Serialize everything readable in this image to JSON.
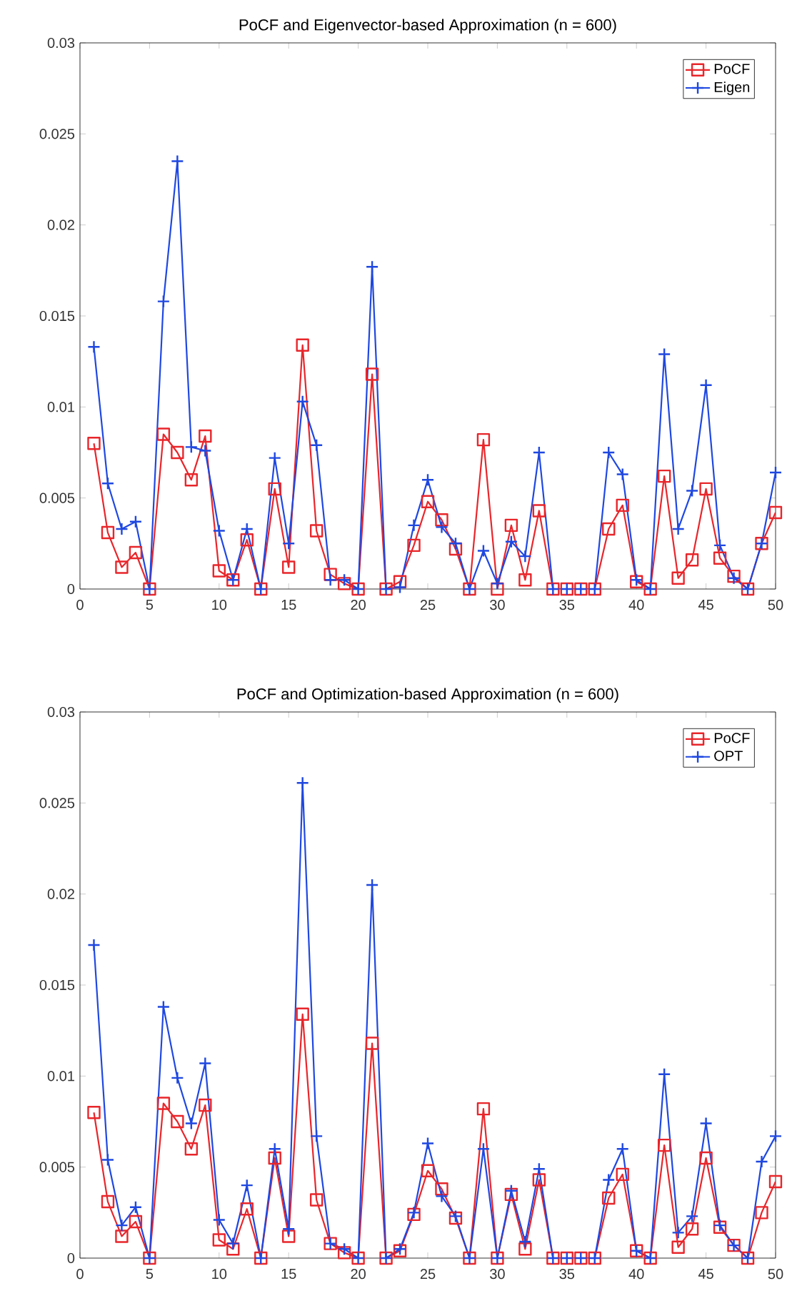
{
  "chart_data": [
    {
      "type": "line",
      "title": "PoCF and Eigenvector-based Approximation (n = 600)",
      "x": [
        1,
        2,
        3,
        4,
        5,
        6,
        7,
        8,
        9,
        10,
        11,
        12,
        13,
        14,
        15,
        16,
        17,
        18,
        19,
        20,
        21,
        22,
        23,
        24,
        25,
        26,
        27,
        28,
        29,
        30,
        31,
        32,
        33,
        34,
        35,
        36,
        37,
        38,
        39,
        40,
        41,
        42,
        43,
        44,
        45,
        46,
        47,
        48,
        49,
        50
      ],
      "series": [
        {
          "name": "PoCF",
          "color": "#e8262b",
          "marker": "square",
          "values": [
            0.008,
            0.0031,
            0.0012,
            0.002,
            0,
            0.0085,
            0.0075,
            0.006,
            0.0084,
            0.001,
            0.0005,
            0.0027,
            0,
            0.0055,
            0.0012,
            0.0134,
            0.0032,
            0.0008,
            0.0003,
            0,
            0.0118,
            0,
            0.0004,
            0.0024,
            0.0048,
            0.0038,
            0.0022,
            0,
            0.0082,
            0,
            0.0035,
            0.0005,
            0.0043,
            0,
            0,
            0,
            0,
            0.0033,
            0.0046,
            0.0004,
            0,
            0.0062,
            0.0006,
            0.0016,
            0.0055,
            0.0017,
            0.0007,
            0,
            0.0025,
            0.0042
          ]
        },
        {
          "name": "Eigen",
          "color": "#1f48e0",
          "marker": "cross",
          "values": [
            0.0133,
            0.0058,
            0.0033,
            0.0037,
            0,
            0.0158,
            0.0235,
            0.0078,
            0.0076,
            0.0032,
            0.0005,
            0.0033,
            0,
            0.0072,
            0.0025,
            0.0103,
            0.0079,
            0.0005,
            0.0005,
            0,
            0.0177,
            0,
            0.0001,
            0.0035,
            0.006,
            0.0034,
            0.0025,
            0,
            0.0021,
            0.0003,
            0.0026,
            0.0018,
            0.0075,
            0,
            0,
            0,
            0,
            0.0075,
            0.0063,
            0.0005,
            0,
            0.0129,
            0.0033,
            0.0054,
            0.0112,
            0.0024,
            0.0006,
            0,
            0.0025,
            0.0064
          ]
        }
      ],
      "xlim": [
        0,
        50
      ],
      "ylim": [
        0,
        0.03
      ],
      "xticks": [
        0,
        5,
        10,
        15,
        20,
        25,
        30,
        35,
        40,
        45,
        50
      ],
      "yticks": [
        0,
        0.005,
        0.01,
        0.015,
        0.02,
        0.025,
        0.03
      ],
      "grid": false,
      "legend": "top right",
      "line_style": "solid"
    },
    {
      "type": "line",
      "title": "PoCF and Optimization-based Approximation (n = 600)",
      "x": [
        1,
        2,
        3,
        4,
        5,
        6,
        7,
        8,
        9,
        10,
        11,
        12,
        13,
        14,
        15,
        16,
        17,
        18,
        19,
        20,
        21,
        22,
        23,
        24,
        25,
        26,
        27,
        28,
        29,
        30,
        31,
        32,
        33,
        34,
        35,
        36,
        37,
        38,
        39,
        40,
        41,
        42,
        43,
        44,
        45,
        46,
        47,
        48,
        49,
        50
      ],
      "series": [
        {
          "name": "PoCF",
          "color": "#e8262b",
          "marker": "square",
          "values": [
            0.008,
            0.0031,
            0.0012,
            0.002,
            0,
            0.0085,
            0.0075,
            0.006,
            0.0084,
            0.001,
            0.0005,
            0.0027,
            0,
            0.0055,
            0.0012,
            0.0134,
            0.0032,
            0.0008,
            0.0003,
            0,
            0.0118,
            0,
            0.0004,
            0.0024,
            0.0048,
            0.0038,
            0.0022,
            0,
            0.0082,
            0,
            0.0035,
            0.0005,
            0.0043,
            0,
            0,
            0,
            0,
            0.0033,
            0.0046,
            0.0004,
            0,
            0.0062,
            0.0006,
            0.0016,
            0.0055,
            0.0017,
            0.0007,
            0,
            0.0025,
            0.0042
          ]
        },
        {
          "name": "OPT",
          "color": "#1f48e0",
          "marker": "cross",
          "values": [
            0.0172,
            0.0054,
            0.0018,
            0.0028,
            0,
            0.0138,
            0.0099,
            0.0074,
            0.0107,
            0.0021,
            0.0008,
            0.004,
            0,
            0.006,
            0.0016,
            0.0261,
            0.0067,
            0.0008,
            0.0005,
            0,
            0.0205,
            0,
            0.0005,
            0.0025,
            0.0063,
            0.0034,
            0.0023,
            0,
            0.006,
            0,
            0.0037,
            0.0009,
            0.0049,
            0,
            0,
            0,
            0,
            0.0043,
            0.006,
            0.0004,
            0,
            0.0101,
            0.0014,
            0.0023,
            0.0074,
            0.0018,
            0.0007,
            0,
            0.0053,
            0.0067
          ]
        }
      ],
      "xlim": [
        0,
        50
      ],
      "ylim": [
        0,
        0.03
      ],
      "xticks": [
        0,
        5,
        10,
        15,
        20,
        25,
        30,
        35,
        40,
        45,
        50
      ],
      "yticks": [
        0,
        0.005,
        0.01,
        0.015,
        0.02,
        0.025,
        0.03
      ],
      "grid": false,
      "legend": "top right",
      "line_style": "solid"
    }
  ]
}
